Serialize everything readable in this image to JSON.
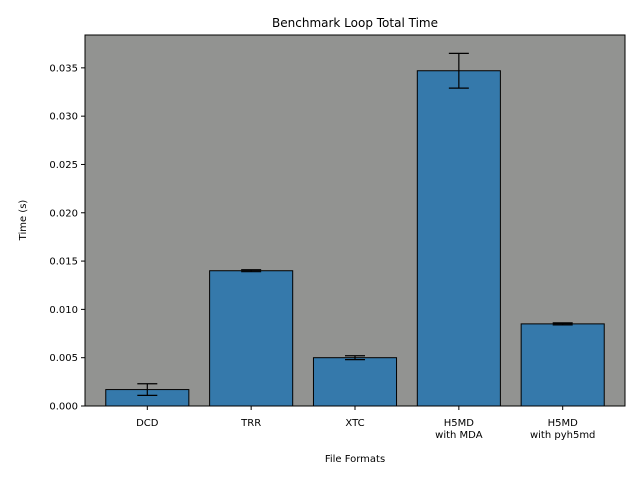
{
  "chart_data": {
    "type": "bar",
    "title": "Benchmark Loop Total Time",
    "xlabel": "File Formats",
    "ylabel": "Time (s)",
    "categories": [
      [
        "DCD"
      ],
      [
        "TRR"
      ],
      [
        "XTC"
      ],
      [
        "H5MD",
        "with MDA"
      ],
      [
        "H5MD",
        "with pyh5md"
      ]
    ],
    "values": [
      0.0017,
      0.014,
      0.005,
      0.0347,
      0.0085
    ],
    "errors": [
      0.0006,
      0.0001,
      0.0002,
      0.0018,
      0.0001
    ],
    "ylim": [
      0,
      0.0384
    ],
    "yticks": [
      0.0,
      0.005,
      0.01,
      0.015,
      0.02,
      0.025,
      0.03,
      0.035
    ],
    "ytick_labels": [
      "0.000",
      "0.005",
      "0.010",
      "0.015",
      "0.020",
      "0.025",
      "0.030",
      "0.035"
    ],
    "grid": false,
    "colors": {
      "bar": "#3579ab",
      "bar_edge": "#000000",
      "plot_background": "#929391",
      "error_bar": "#000000"
    }
  }
}
